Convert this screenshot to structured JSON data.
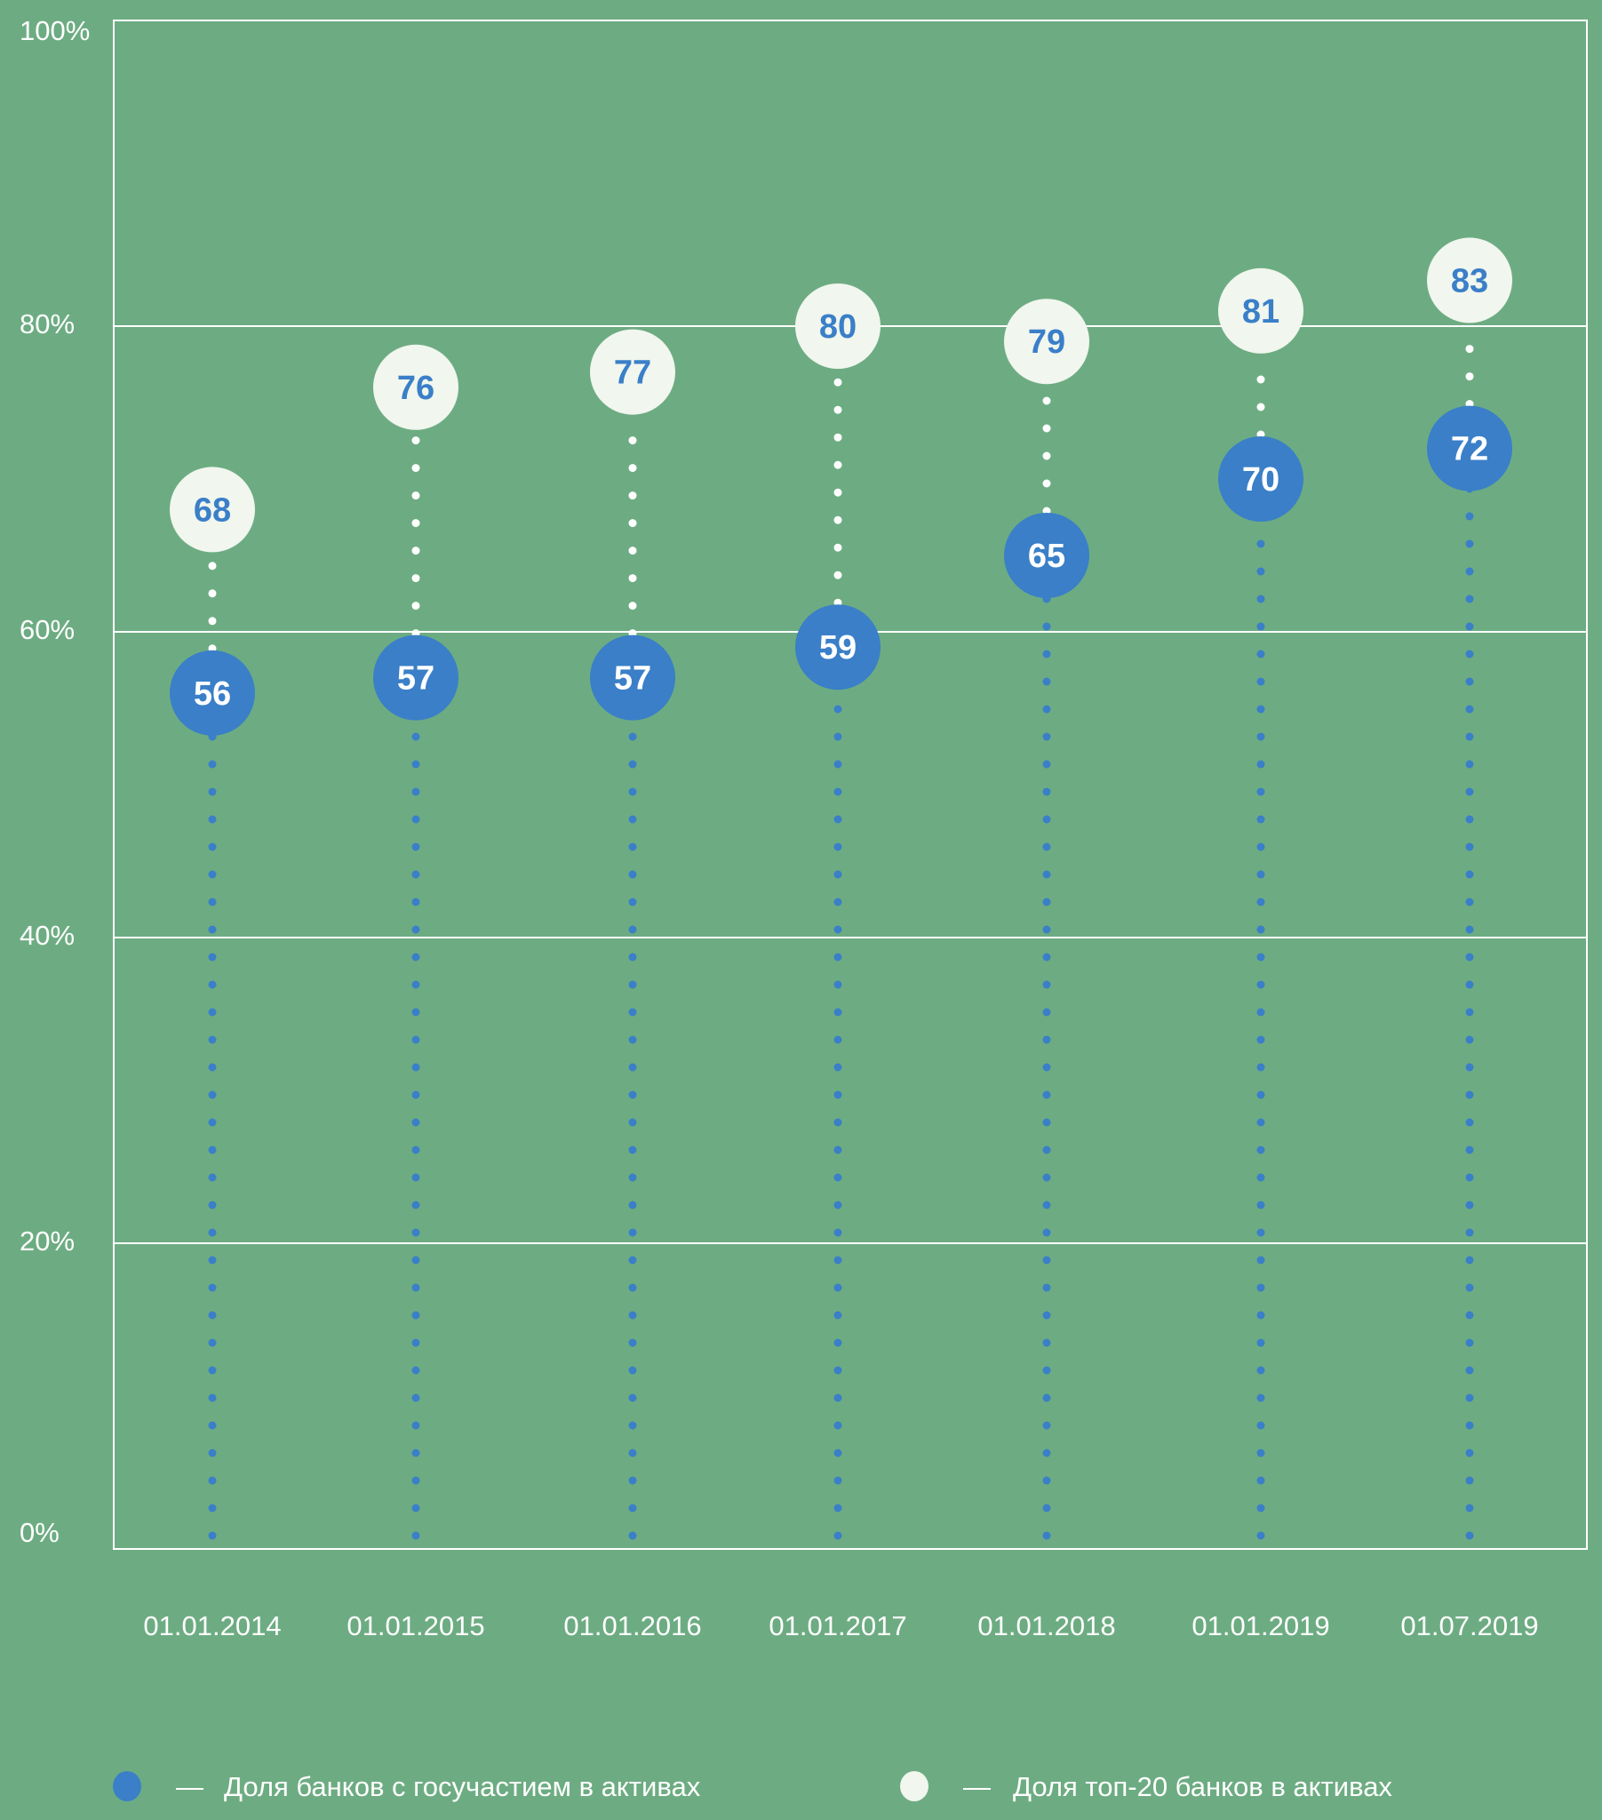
{
  "chart_data": {
    "type": "scatter",
    "title": "",
    "xlabel": "",
    "ylabel": "",
    "ylim": [
      0,
      100
    ],
    "y_ticks": [
      "0%",
      "20%",
      "40%",
      "60%",
      "80%",
      "100%"
    ],
    "grid": true,
    "categories": [
      "01.01.2014",
      "01.01.2015",
      "01.01.2016",
      "01.01.2017",
      "01.01.2018",
      "01.01.2019",
      "01.07.2019"
    ],
    "series": [
      {
        "name": "Доля банков с госучастием в активах",
        "color": "#3a7fc8",
        "values": [
          56,
          57,
          57,
          59,
          65,
          70,
          72
        ]
      },
      {
        "name": "Доля топ-20 банков в активах",
        "color": "#f1f6ee",
        "values": [
          68,
          76,
          77,
          80,
          79,
          81,
          83
        ]
      }
    ],
    "legend": {
      "placement": "bottom",
      "dash": "—",
      "items": [
        "Доля банков с госучастием в активах",
        "Доля топ-20 банков в активах"
      ]
    },
    "colors": {
      "background": "#6dac82",
      "grid": "#ffffff"
    }
  }
}
